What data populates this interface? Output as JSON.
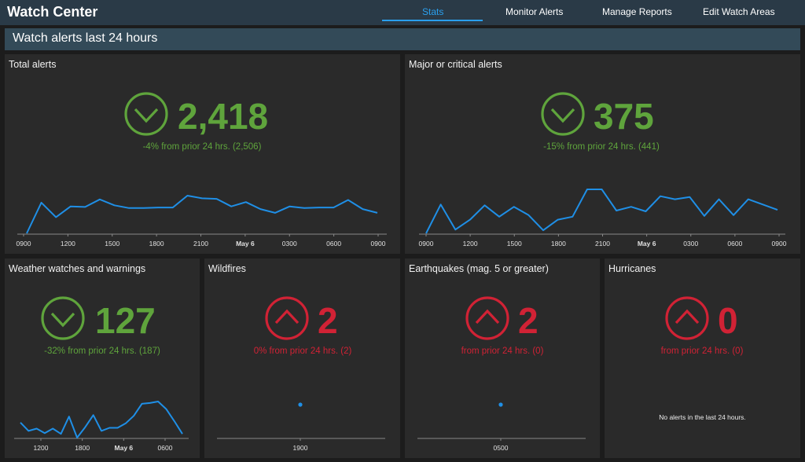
{
  "app": {
    "title": "Watch Center"
  },
  "nav": {
    "tabs": [
      {
        "label": "Stats",
        "active": true
      },
      {
        "label": "Monitor Alerts",
        "active": false
      },
      {
        "label": "Manage Reports",
        "active": false
      },
      {
        "label": "Edit Watch Areas",
        "active": false
      }
    ]
  },
  "banner": {
    "title": "Watch alerts last 24 hours"
  },
  "colors": {
    "increase_red": "#d12235",
    "decrease_green": "#5fa43c",
    "line_blue": "#1f8fe6",
    "accent_blue": "#2aa0ee"
  },
  "panels": {
    "total": {
      "title": "Total alerts",
      "value": "2,418",
      "sub": "-4% from prior 24 hrs. (2,506)",
      "icon": "chevron-down-circle-icon",
      "trend": "down"
    },
    "major": {
      "title": "Major or critical alerts",
      "value": "375",
      "sub": "-15% from prior 24 hrs. (441)",
      "icon": "chevron-down-circle-icon",
      "trend": "down"
    },
    "weather": {
      "title": "Weather watches and warnings",
      "value": "127",
      "sub": "-32% from prior 24 hrs. (187)",
      "icon": "chevron-down-circle-icon",
      "trend": "down"
    },
    "wildfires": {
      "title": "Wildfires",
      "value": "2",
      "sub": "0% from prior 24 hrs. (2)",
      "icon": "chevron-up-circle-icon",
      "trend": "up"
    },
    "earthquakes": {
      "title": "Earthquakes (mag. 5 or greater)",
      "value": "2",
      "sub": "from prior 24 hrs. (0)",
      "icon": "chevron-up-circle-icon",
      "trend": "up"
    },
    "hurricanes": {
      "title": "Hurricanes",
      "value": "0",
      "sub": "from prior 24 hrs. (0)",
      "icon": "chevron-up-circle-icon",
      "trend": "up",
      "empty_message": "No alerts in the last 24 hours."
    }
  },
  "chart_data": [
    {
      "type": "line",
      "panel": "Total alerts",
      "tick_labels": [
        "0900",
        "1200",
        "1500",
        "1800",
        "2100",
        "May 6",
        "0300",
        "0600",
        "0900"
      ],
      "values": [
        0,
        57,
        30,
        50,
        49,
        63,
        52,
        47,
        47,
        48,
        48,
        70,
        65,
        64,
        50,
        58,
        45,
        38,
        50,
        47,
        48,
        48,
        62,
        45,
        38
      ],
      "grid": false
    },
    {
      "type": "line",
      "panel": "Major or critical alerts",
      "tick_labels": [
        "0900",
        "1200",
        "1500",
        "1800",
        "2100",
        "May 6",
        "0300",
        "0600",
        "0900"
      ],
      "values": [
        0,
        38,
        5,
        18,
        37,
        22,
        35,
        24,
        4,
        18,
        22,
        58,
        58,
        30,
        35,
        29,
        49,
        45,
        48,
        23,
        45,
        24,
        45,
        38,
        31
      ],
      "grid": false
    },
    {
      "type": "line",
      "panel": "Weather watches and warnings",
      "tick_labels": [
        "1200",
        "1800",
        "May 6",
        "0600"
      ],
      "values": [
        20,
        9,
        12,
        6,
        12,
        5,
        28,
        0,
        14,
        30,
        9,
        13,
        13,
        19,
        29,
        45,
        46,
        48,
        38,
        22,
        5
      ],
      "grid": false
    },
    {
      "type": "scatter",
      "panel": "Wildfires",
      "tick_labels": [
        "1900"
      ],
      "points": [
        {
          "x": "1900",
          "y": 2
        }
      ],
      "grid": false
    },
    {
      "type": "scatter",
      "panel": "Earthquakes (mag. 5 or greater)",
      "tick_labels": [
        "0500"
      ],
      "points": [
        {
          "x": "0500",
          "y": 2
        }
      ],
      "grid": false
    }
  ]
}
